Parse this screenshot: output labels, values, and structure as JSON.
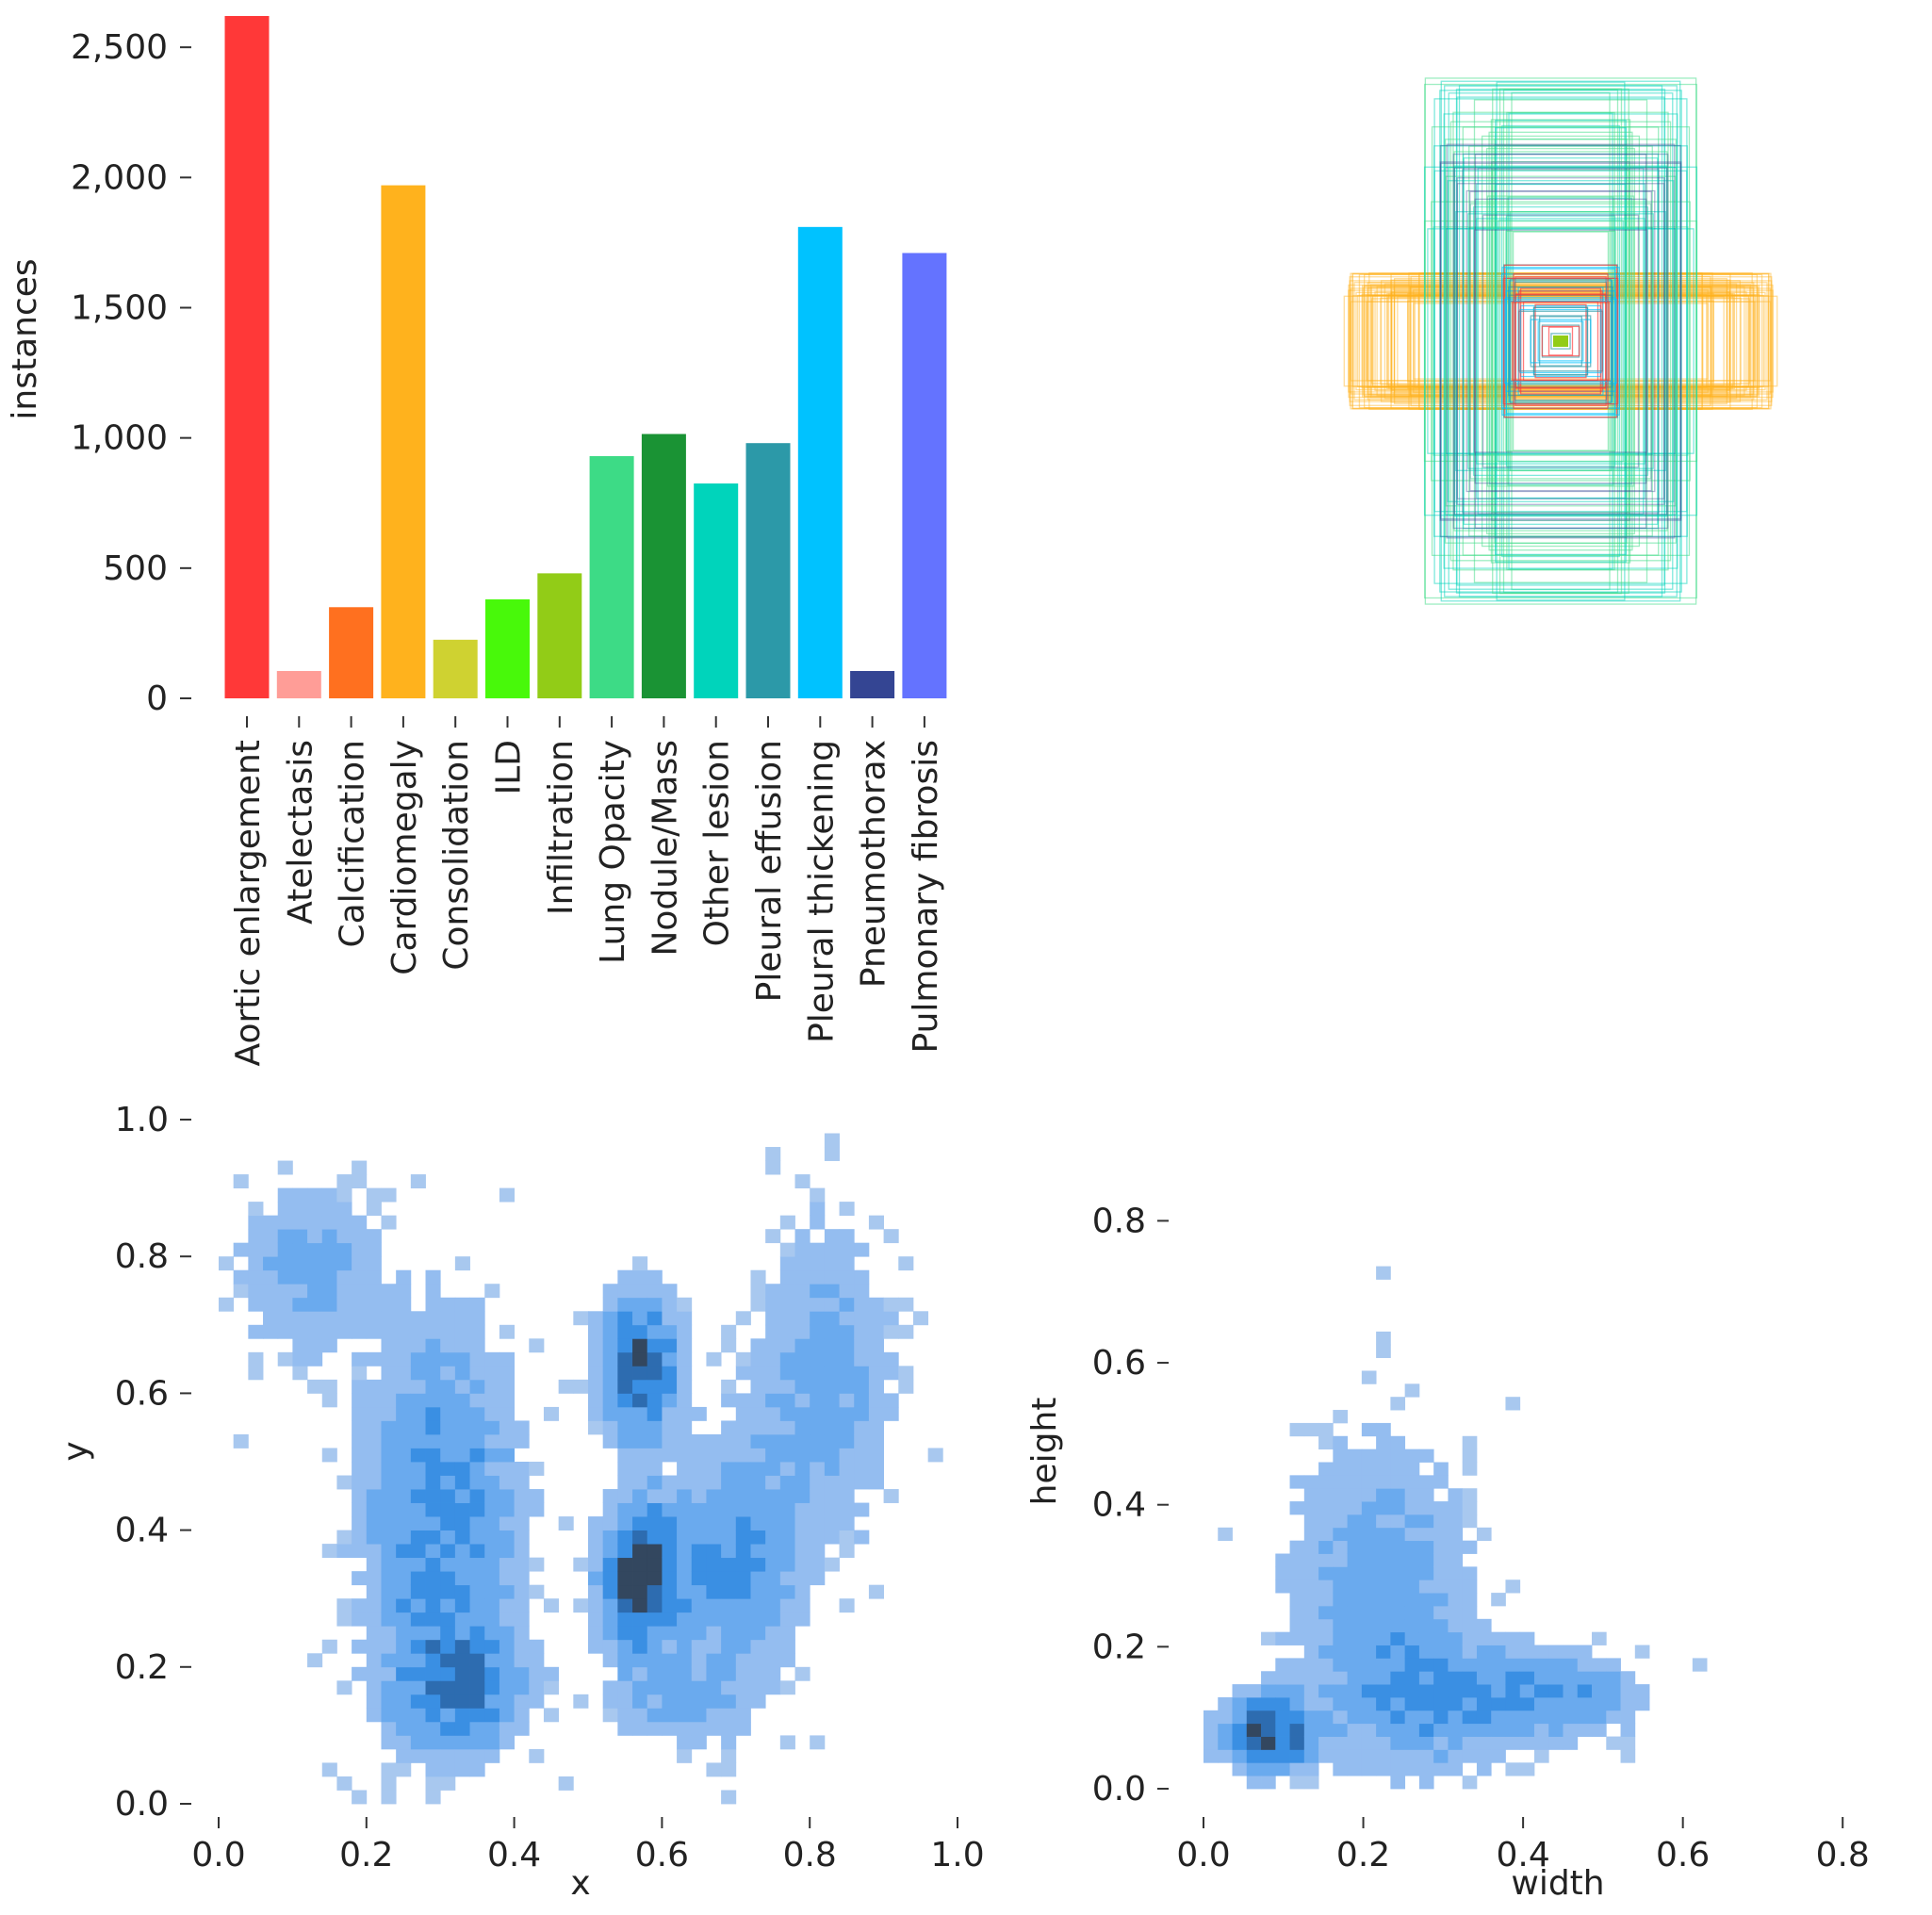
{
  "chart_data": [
    {
      "type": "bar",
      "categories": [
        "Aortic enlargement",
        "Atelectasis",
        "Calcification",
        "Cardiomegaly",
        "Consolidation",
        "ILD",
        "Infiltration",
        "Lung Opacity",
        "Nodule/Mass",
        "Other lesion",
        "Pleural effusion",
        "Pleural thickening",
        "Pneumothorax",
        "Pulmonary fibrosis"
      ],
      "values": [
        2620,
        105,
        350,
        1970,
        225,
        380,
        480,
        930,
        1015,
        825,
        980,
        1810,
        105,
        1710
      ],
      "colors": [
        "#ff3838",
        "#ff9d97",
        "#ff701f",
        "#ffb21d",
        "#cfd231",
        "#48f90a",
        "#92cc17",
        "#3ddb86",
        "#1a9334",
        "#00d4bb",
        "#2c99a8",
        "#00c2ff",
        "#344593",
        "#6473ff"
      ],
      "xlabel": "",
      "ylabel": "instances",
      "ylim": [
        0,
        2620
      ],
      "yticks": [
        0,
        500,
        1000,
        1500,
        2000,
        2500
      ],
      "ytick_labels": [
        "0",
        "500",
        "1,000",
        "1,500",
        "2,000",
        "2,500"
      ]
    },
    {
      "type": "boxes",
      "description_free": true,
      "box_colors": [
        "#ffb21d",
        "#00d4bb",
        "#3ddb86",
        "#ff3838",
        "#2c99a8",
        "#00c2ff",
        "#344593",
        "#92cc17"
      ]
    },
    {
      "type": "heatmap",
      "xlabel": "x",
      "ylabel": "y",
      "xlim": [
        0,
        1
      ],
      "ylim": [
        0,
        1
      ],
      "xticks": [
        "0.0",
        "0.2",
        "0.4",
        "0.6",
        "0.8",
        "1.0"
      ],
      "yticks": [
        "0.0",
        "0.2",
        "0.4",
        "0.6",
        "0.8",
        "1.0"
      ],
      "blobs": [
        {
          "x": 0.57,
          "y": 0.33,
          "sx": 0.035,
          "sy": 0.07,
          "w": 1.0
        },
        {
          "x": 0.57,
          "y": 0.64,
          "sx": 0.035,
          "sy": 0.07,
          "w": 0.85
        },
        {
          "x": 0.3,
          "y": 0.4,
          "sx": 0.07,
          "sy": 0.2,
          "w": 0.55
        },
        {
          "x": 0.33,
          "y": 0.17,
          "sx": 0.06,
          "sy": 0.05,
          "w": 0.5
        },
        {
          "x": 0.12,
          "y": 0.78,
          "sx": 0.06,
          "sy": 0.08,
          "w": 0.35
        },
        {
          "x": 0.7,
          "y": 0.35,
          "sx": 0.06,
          "sy": 0.12,
          "w": 0.45
        },
        {
          "x": 0.82,
          "y": 0.62,
          "sx": 0.06,
          "sy": 0.15,
          "w": 0.35
        },
        {
          "x": 0.62,
          "y": 0.15,
          "sx": 0.06,
          "sy": 0.04,
          "w": 0.3
        }
      ]
    },
    {
      "type": "heatmap",
      "xlabel": "width",
      "ylabel": "height",
      "xlim": [
        0,
        0.9
      ],
      "ylim": [
        0,
        0.92
      ],
      "xticks": [
        "0.0",
        "0.2",
        "0.4",
        "0.6",
        "0.8"
      ],
      "yticks": [
        "0.0",
        "0.2",
        "0.4",
        "0.6",
        "0.8"
      ],
      "blobs": [
        {
          "x": 0.08,
          "y": 0.08,
          "sx": 0.035,
          "sy": 0.035,
          "w": 1.0
        },
        {
          "x": 0.22,
          "y": 0.28,
          "sx": 0.08,
          "sy": 0.15,
          "w": 0.35
        },
        {
          "x": 0.44,
          "y": 0.13,
          "sx": 0.07,
          "sy": 0.04,
          "w": 0.45
        },
        {
          "x": 0.3,
          "y": 0.12,
          "sx": 0.08,
          "sy": 0.06,
          "w": 0.3
        }
      ]
    }
  ]
}
